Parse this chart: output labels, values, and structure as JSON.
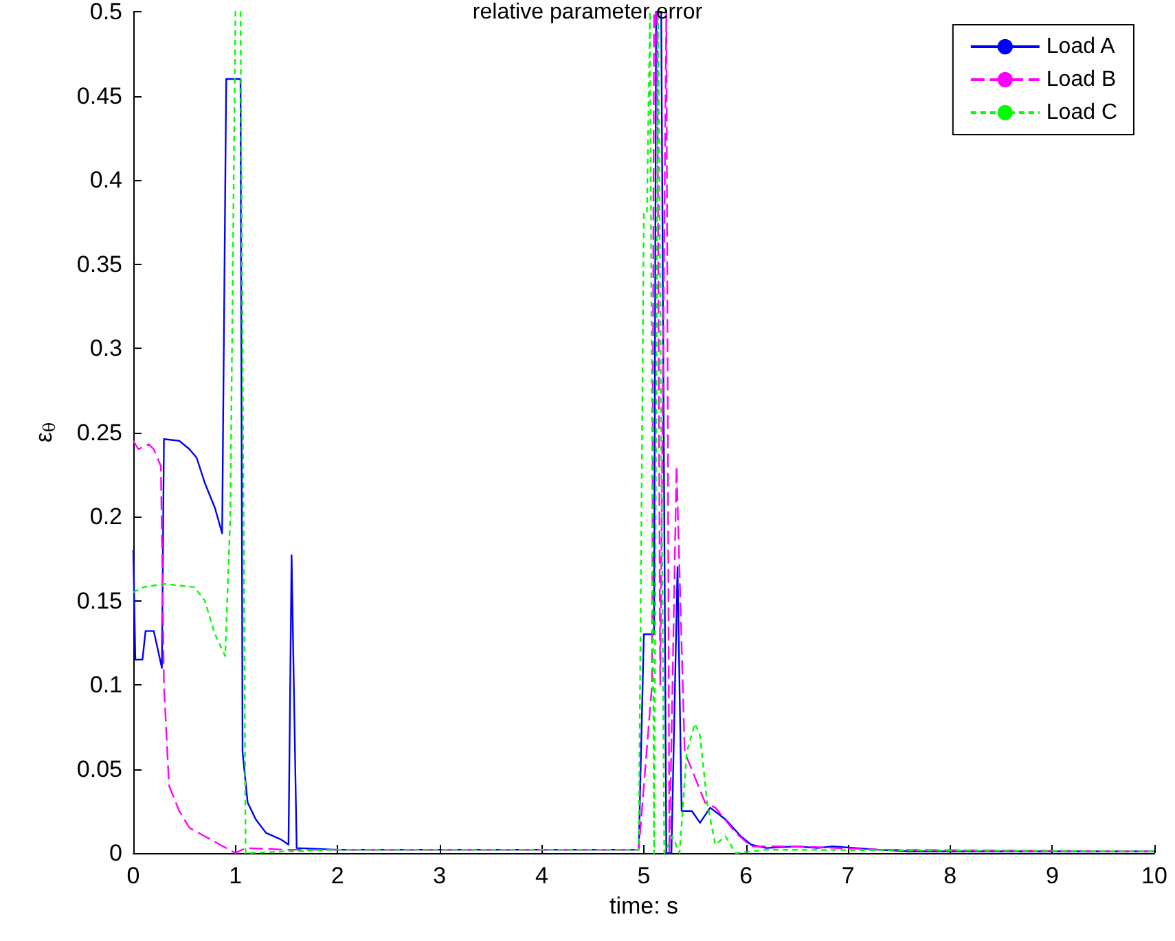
{
  "chart_data": {
    "type": "line",
    "title": "relative parameter error",
    "xlabel": "time: s",
    "ylabel": "ε$_{θ}$",
    "xlim": [
      0,
      10
    ],
    "xticks": [
      0,
      1,
      2,
      3,
      4,
      5,
      6,
      7,
      8,
      9,
      10
    ],
    "ylim": [
      0,
      0.5
    ],
    "yticks": [
      0,
      0.05,
      0.1,
      0.15,
      0.2,
      0.25,
      0.3,
      0.35,
      0.4,
      0.45,
      0.5
    ],
    "grid": false,
    "legend": "top right",
    "marker": "none",
    "series": [
      {
        "name": "Load A",
        "color": "#0000ff",
        "line_style": "solid",
        "x": [
          0,
          0.02,
          0.09,
          0.12,
          0.2,
          0.28,
          0.3,
          0.45,
          0.55,
          0.62,
          0.7,
          0.8,
          0.87,
          0.91,
          1.05,
          1.07,
          1.12,
          1.2,
          1.3,
          1.45,
          1.52,
          1.55,
          1.6,
          2,
          4.95,
          5.0,
          5.1,
          5.12,
          5.17,
          5.22,
          5.27,
          5.33,
          5.37,
          5.47,
          5.55,
          5.65,
          5.8,
          5.95,
          6.05,
          6.2,
          6.5,
          6.7,
          6.85,
          7.3,
          7.6,
          10
        ],
        "values": [
          0.18,
          0.115,
          0.115,
          0.132,
          0.132,
          0.11,
          0.246,
          0.245,
          0.24,
          0.235,
          0.22,
          0.205,
          0.19,
          0.46,
          0.46,
          0.06,
          0.03,
          0.02,
          0.012,
          0.008,
          0.005,
          0.177,
          0.003,
          0.002,
          0.002,
          0.13,
          0.13,
          0.5,
          0.5,
          0,
          0,
          0.17,
          0.025,
          0.025,
          0.018,
          0.027,
          0.02,
          0.01,
          0.005,
          0.003,
          0.004,
          0.003,
          0.004,
          0.002,
          0.001,
          0.001
        ]
      },
      {
        "name": "Load B",
        "color": "#ff00ff",
        "line_style": "dashed",
        "x": [
          0,
          0.05,
          0.15,
          0.2,
          0.27,
          0.3,
          0.35,
          0.45,
          0.55,
          0.7,
          0.85,
          1.0,
          1.1,
          1.5,
          2,
          4.95,
          5.08,
          5.1,
          5.13,
          5.16,
          5.22,
          5.25,
          5.32,
          5.4,
          5.5,
          5.6,
          5.7,
          5.9,
          6.05,
          6.5,
          7.3,
          10
        ],
        "values": [
          0.245,
          0.24,
          0.243,
          0.24,
          0.23,
          0.1,
          0.04,
          0.025,
          0.015,
          0.01,
          0.005,
          0,
          0.003,
          0.002,
          0.002,
          0.002,
          0.1,
          0.5,
          0.5,
          0.1,
          0.5,
          0,
          0.23,
          0.06,
          0.045,
          0.03,
          0.027,
          0.012,
          0.004,
          0.004,
          0.002,
          0.001
        ]
      },
      {
        "name": "Load C",
        "color": "#00ff00",
        "line_style": "dotted",
        "x": [
          0,
          0.1,
          0.3,
          0.6,
          0.7,
          0.8,
          0.9,
          0.95,
          1.0,
          1.05,
          1.1,
          1.5,
          2,
          4.95,
          5.0,
          5.03,
          5.06,
          5.1,
          5.14,
          5.2,
          5.28,
          5.35,
          5.42,
          5.5,
          5.55,
          5.62,
          5.7,
          5.8,
          5.9,
          6.2,
          10
        ],
        "values": [
          0.155,
          0.158,
          0.16,
          0.158,
          0.15,
          0.13,
          0.117,
          0.2,
          0.5,
          0.5,
          0,
          0.001,
          0.002,
          0.002,
          0.38,
          0.38,
          0.5,
          0,
          0.5,
          0,
          0.01,
          0,
          0.06,
          0.077,
          0.07,
          0.03,
          0.005,
          0.01,
          0,
          0.002,
          0.001
        ]
      }
    ]
  }
}
